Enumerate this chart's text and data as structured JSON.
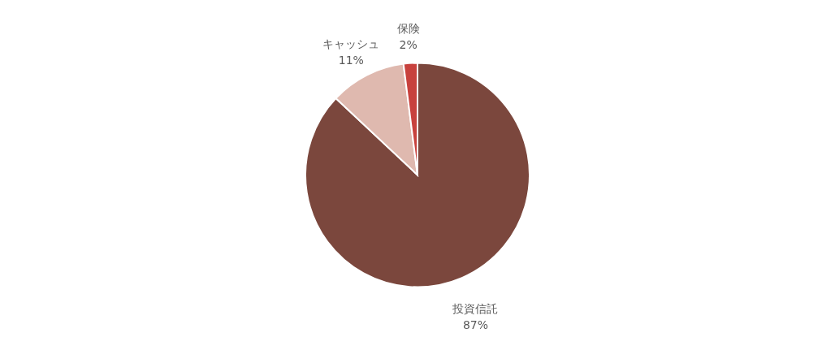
{
  "chart_data": {
    "type": "pie",
    "categories": [
      "投資信託",
      "キャッシュ",
      "保険"
    ],
    "values": [
      87,
      11,
      2
    ],
    "colors": [
      "#7b473d",
      "#dfb9af",
      "#c8413d"
    ],
    "value_labels": [
      "87%",
      "11%",
      "2%"
    ]
  }
}
